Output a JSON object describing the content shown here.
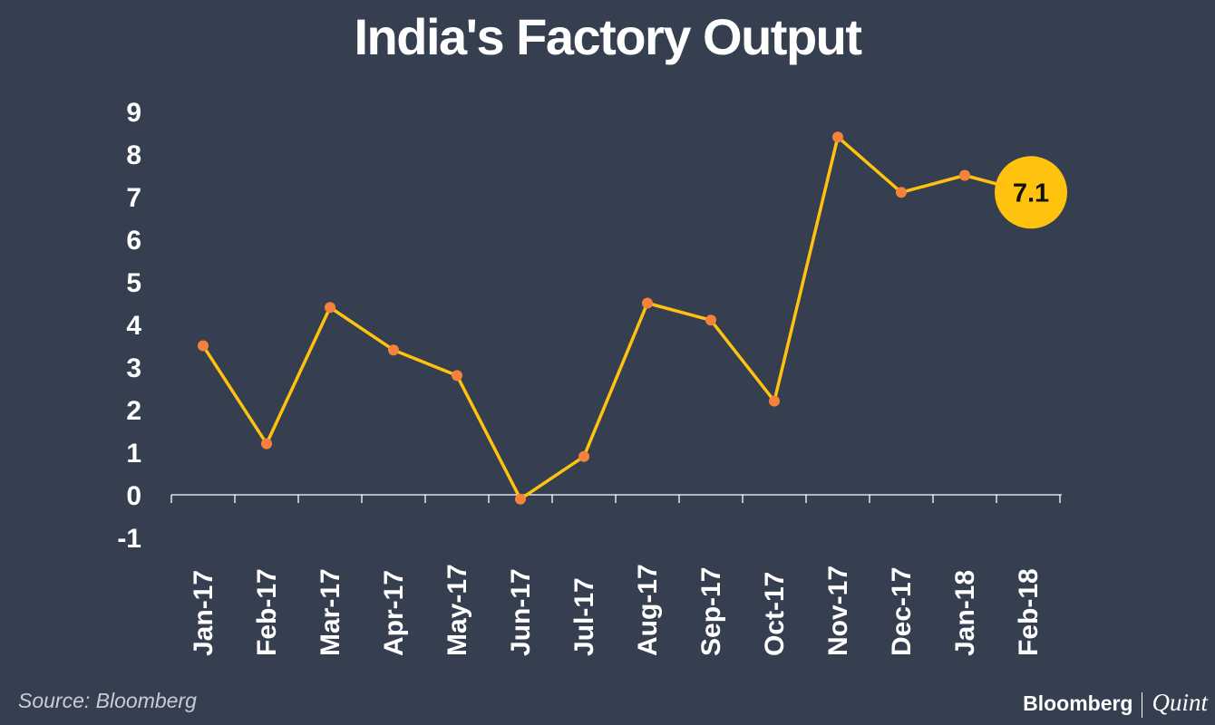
{
  "chart_data": {
    "type": "line",
    "title": "India's Factory Output",
    "categories": [
      "Jan-17",
      "Feb-17",
      "Mar-17",
      "Apr-17",
      "May-17",
      "Jun-17",
      "Jul-17",
      "Aug-17",
      "Sep-17",
      "Oct-17",
      "Nov-17",
      "Dec-17",
      "Jan-18",
      "Feb-18"
    ],
    "series": [
      {
        "name": "Factory Output",
        "values": [
          3.5,
          1.2,
          4.4,
          3.4,
          2.8,
          -0.1,
          0.9,
          4.5,
          4.1,
          2.2,
          8.4,
          7.1,
          7.5,
          7.1
        ],
        "line_color": "#ffc20e",
        "marker_color": "#f5823c"
      }
    ],
    "y_ticks": [
      "9",
      "8",
      "7",
      "6",
      "5",
      "4",
      "3",
      "2",
      "1",
      "0",
      "-1"
    ],
    "ylim": [
      -1,
      9
    ],
    "xlabel": "",
    "ylabel": "",
    "highlight": {
      "index": 13,
      "label": "7.1",
      "color": "#ffc20e"
    }
  },
  "footer": {
    "source": "Source: Bloomberg",
    "brand_primary": "Bloomberg",
    "brand_secondary": "Quint"
  }
}
